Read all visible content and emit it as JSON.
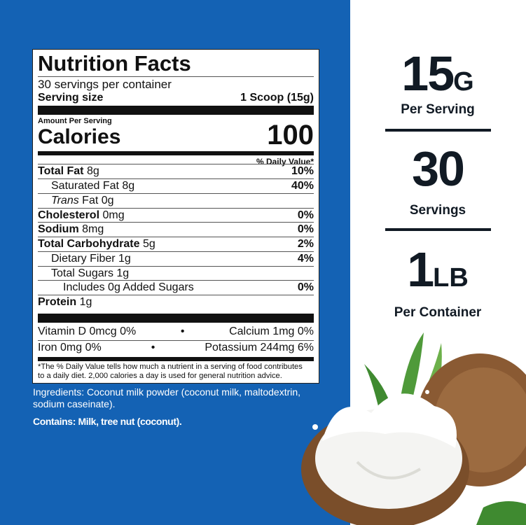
{
  "label": {
    "title": "Nutrition Facts",
    "servings_per_container": "30 servings per container",
    "serving_size_label": "Serving size",
    "serving_size_value": "1 Scoop (15g)",
    "amount_per_serving": "Amount Per Serving",
    "calories_label": "Calories",
    "calories_value": "100",
    "daily_value_header": "% Daily Value*",
    "nutrients": [
      {
        "name": "Total Fat",
        "amount": "8g",
        "dv": "10%"
      },
      {
        "name": "Saturated Fat",
        "amount": "8g",
        "dv": "40%"
      },
      {
        "name": "Trans",
        "name2": "Fat",
        "amount": "0g",
        "dv": ""
      },
      {
        "name": "Cholesterol",
        "amount": "0mg",
        "dv": "0%"
      },
      {
        "name": "Sodium",
        "amount": "8mg",
        "dv": "0%"
      },
      {
        "name": "Total Carbohydrate",
        "amount": "5g",
        "dv": "2%"
      },
      {
        "name": "Dietary Fiber",
        "amount": "1g",
        "dv": "4%"
      },
      {
        "name": "Total Sugars",
        "amount": "1g",
        "dv": ""
      },
      {
        "name": "Includes 0g Added Sugars",
        "amount": "",
        "dv": "0%"
      },
      {
        "name": "Protein",
        "amount": "1g",
        "dv": ""
      }
    ],
    "vitamins": [
      {
        "left": "Vitamin D  0mcg  0%",
        "right": "Calcium  1mg  0%"
      },
      {
        "left": "Iron  0mg  0%",
        "right": "Potassium  244mg  6%"
      }
    ],
    "bullet": "•",
    "footnote_1": "*The % Daily Value tells how much a nutrient in a serving of food contributes",
    "footnote_2": "to a daily diet. 2,000 calories a day is used for general nutrition advice."
  },
  "ingredients": "Ingredients: Coconut milk powder (coconut milk, maltodextrin, sodium caseinate).",
  "contains": "Contains: Milk, tree nut (coconut).",
  "stats": [
    {
      "value": "15",
      "unit": "G",
      "label": "Per Serving"
    },
    {
      "value": "30",
      "unit": "",
      "label": "Servings"
    },
    {
      "value": "1",
      "unit": "LB",
      "label": "Per Container"
    }
  ],
  "colors": {
    "background_blue": "#1462b4",
    "text_dark": "#111a24"
  }
}
